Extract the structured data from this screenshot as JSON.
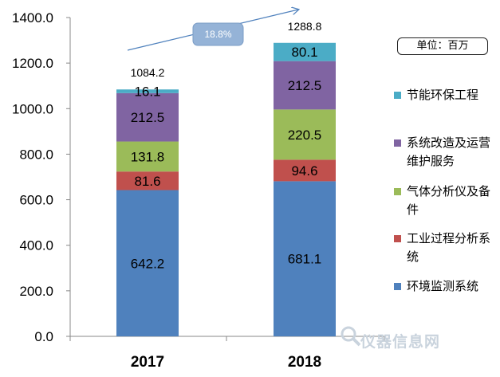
{
  "chart_data": {
    "type": "bar",
    "stacked": true,
    "categories": [
      "2017",
      "2018"
    ],
    "series": [
      {
        "name": "环境监测系统",
        "color": "#4f81bd",
        "values": [
          642.2,
          681.1
        ]
      },
      {
        "name": "工业过程分析系统",
        "color": "#c0504d",
        "values": [
          81.6,
          94.6
        ]
      },
      {
        "name": "气体分析仪及备件",
        "color": "#9bbb59",
        "values": [
          131.8,
          220.5
        ]
      },
      {
        "name": "系统改造及运营维护服务",
        "color": "#8064a2",
        "values": [
          212.5,
          212.5
        ]
      },
      {
        "name": "节能环保工程",
        "color": "#4bacc6",
        "values": [
          16.1,
          80.1
        ]
      }
    ],
    "totals": [
      "1084.2",
      "1288.8"
    ],
    "growth_label": "18.8%",
    "unit_label": "单位：百万",
    "ylim": [
      0,
      1400
    ],
    "yticks": [
      "0.0",
      "200.0",
      "400.0",
      "600.0",
      "800.0",
      "1000.0",
      "1200.0",
      "1400.0"
    ],
    "grid": false,
    "legend_position": "right"
  },
  "watermark_text": "仪器信息网"
}
